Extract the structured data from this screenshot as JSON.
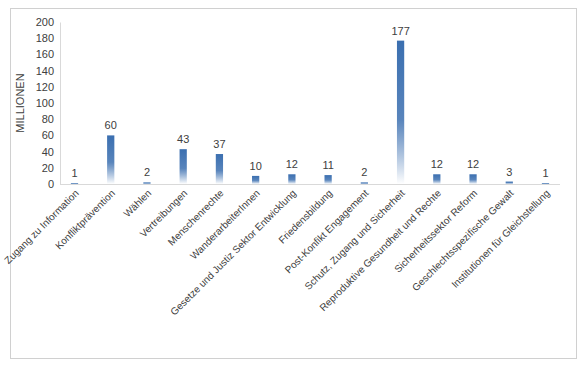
{
  "chart_data": {
    "type": "bar",
    "y_label": "MILLIONEN",
    "categories": [
      "Zugang zu Information",
      "Konfliktprävention",
      "Wählen",
      "Vertreibungen",
      "Menschenrechte",
      "WanderarbeiterInnen",
      "Gesetze und Justiz Sektor Entwicklung",
      "Friedensbildung",
      "Post-Konfikt Engagement",
      "Schutz, Zugang und Sicherheit",
      "Reproduktive Gesundheit und Rechte",
      "Sicherheitssektor Reform",
      "Geschlechtsspezifische Gewalt",
      "Institutionen für Gleichstellung"
    ],
    "values": [
      1,
      60,
      2,
      43,
      37,
      10,
      12,
      11,
      2,
      177,
      12,
      12,
      3,
      1
    ],
    "color": "#3b6fb0",
    "ylim": [
      0,
      200
    ],
    "yticks": [
      0,
      20,
      40,
      60,
      80,
      100,
      120,
      140,
      160,
      180,
      200
    ],
    "grid": false,
    "data_labels": true
  }
}
